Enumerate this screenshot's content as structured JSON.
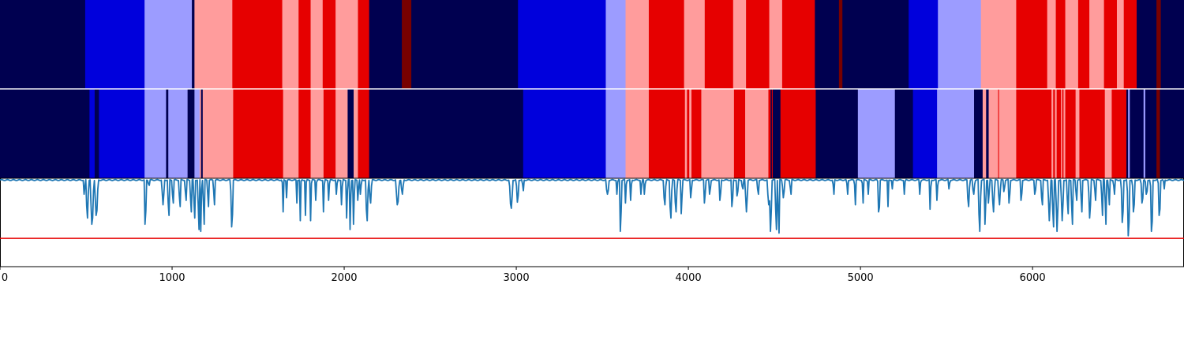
{
  "chart_data": {
    "type": "segmentation-strips-with-line",
    "xlim": [
      0,
      6880
    ],
    "x_ticks": [
      0,
      1000,
      2000,
      3000,
      4000,
      5000,
      6000
    ],
    "x_tick_labels": [
      "0",
      "1000",
      "2000",
      "3000",
      "4000",
      "5000",
      "6000"
    ],
    "state_colors": [
      "#000050",
      "#0000dc",
      "#9c9cff",
      "#ff9c9c",
      "#e60000",
      "#780000"
    ],
    "strip_top": [
      [
        0,
        0
      ],
      [
        495,
        1
      ],
      [
        840,
        2
      ],
      [
        1115,
        0
      ],
      [
        1130,
        3
      ],
      [
        1350,
        4
      ],
      [
        1640,
        3
      ],
      [
        1735,
        4
      ],
      [
        1805,
        3
      ],
      [
        1875,
        4
      ],
      [
        1950,
        3
      ],
      [
        2080,
        4
      ],
      [
        2145,
        0
      ],
      [
        2335,
        5
      ],
      [
        2390,
        0
      ],
      [
        3010,
        1
      ],
      [
        3520,
        2
      ],
      [
        3635,
        3
      ],
      [
        3770,
        4
      ],
      [
        3975,
        3
      ],
      [
        4095,
        4
      ],
      [
        4260,
        3
      ],
      [
        4335,
        4
      ],
      [
        4470,
        3
      ],
      [
        4545,
        4
      ],
      [
        4735,
        0
      ],
      [
        4875,
        5
      ],
      [
        4895,
        0
      ],
      [
        5280,
        1
      ],
      [
        5450,
        2
      ],
      [
        5700,
        3
      ],
      [
        5905,
        4
      ],
      [
        6085,
        3
      ],
      [
        6135,
        4
      ],
      [
        6190,
        3
      ],
      [
        6265,
        4
      ],
      [
        6330,
        3
      ],
      [
        6415,
        4
      ],
      [
        6490,
        3
      ],
      [
        6530,
        4
      ],
      [
        6605,
        0
      ],
      [
        6720,
        5
      ],
      [
        6745,
        0
      ]
    ],
    "strip_bottom": [
      [
        0,
        0
      ],
      [
        520,
        1
      ],
      [
        550,
        0
      ],
      [
        575,
        1
      ],
      [
        840,
        2
      ],
      [
        965,
        0
      ],
      [
        978,
        2
      ],
      [
        1090,
        0
      ],
      [
        1130,
        2
      ],
      [
        1160,
        3
      ],
      [
        1168,
        0
      ],
      [
        1178,
        3
      ],
      [
        1355,
        4
      ],
      [
        1645,
        3
      ],
      [
        1735,
        4
      ],
      [
        1805,
        3
      ],
      [
        1880,
        4
      ],
      [
        1950,
        3
      ],
      [
        2020,
        0
      ],
      [
        2055,
        3
      ],
      [
        2080,
        4
      ],
      [
        2145,
        0
      ],
      [
        3040,
        1
      ],
      [
        3520,
        2
      ],
      [
        3635,
        3
      ],
      [
        3770,
        4
      ],
      [
        3980,
        3
      ],
      [
        3992,
        4
      ],
      [
        4005,
        3
      ],
      [
        4018,
        4
      ],
      [
        4075,
        3
      ],
      [
        4265,
        4
      ],
      [
        4330,
        3
      ],
      [
        4465,
        4
      ],
      [
        4478,
        0
      ],
      [
        4485,
        4
      ],
      [
        4490,
        0
      ],
      [
        4535,
        4
      ],
      [
        4740,
        0
      ],
      [
        4985,
        2
      ],
      [
        5200,
        0
      ],
      [
        5305,
        1
      ],
      [
        5445,
        2
      ],
      [
        5660,
        0
      ],
      [
        5710,
        3
      ],
      [
        5730,
        0
      ],
      [
        5745,
        3
      ],
      [
        5800,
        4
      ],
      [
        5805,
        3
      ],
      [
        5905,
        4
      ],
      [
        6110,
        3
      ],
      [
        6120,
        4
      ],
      [
        6130,
        3
      ],
      [
        6140,
        4
      ],
      [
        6165,
        3
      ],
      [
        6172,
        4
      ],
      [
        6180,
        3
      ],
      [
        6190,
        4
      ],
      [
        6250,
        3
      ],
      [
        6272,
        4
      ],
      [
        6420,
        3
      ],
      [
        6460,
        4
      ],
      [
        6545,
        0
      ],
      [
        6555,
        2
      ],
      [
        6565,
        0
      ],
      [
        6645,
        2
      ],
      [
        6655,
        0
      ],
      [
        6720,
        5
      ],
      [
        6740,
        0
      ]
    ],
    "line_color": "#1f77b4",
    "threshold_color": "#e60000",
    "line_ylim": [
      0,
      1
    ],
    "threshold": 0.32,
    "baseline": 0.98,
    "dips": [
      [
        485,
        495,
        0.82
      ],
      [
        500,
        515,
        0.55
      ],
      [
        525,
        545,
        0.48
      ],
      [
        550,
        570,
        0.58
      ],
      [
        840,
        850,
        0.48
      ],
      [
        860,
        870,
        0.92
      ],
      [
        940,
        955,
        0.7
      ],
      [
        975,
        985,
        0.58
      ],
      [
        1000,
        1010,
        0.72
      ],
      [
        1040,
        1050,
        0.68
      ],
      [
        1075,
        1085,
        0.75
      ],
      [
        1105,
        1115,
        0.62
      ],
      [
        1125,
        1135,
        0.55
      ],
      [
        1150,
        1160,
        0.42
      ],
      [
        1165,
        1172,
        0.4
      ],
      [
        1180,
        1190,
        0.48
      ],
      [
        1205,
        1215,
        0.68
      ],
      [
        1240,
        1250,
        0.7
      ],
      [
        1340,
        1355,
        0.45
      ],
      [
        1640,
        1650,
        0.62
      ],
      [
        1660,
        1670,
        0.78
      ],
      [
        1720,
        1730,
        0.72
      ],
      [
        1740,
        1750,
        0.52
      ],
      [
        1770,
        1780,
        0.58
      ],
      [
        1800,
        1810,
        0.52
      ],
      [
        1830,
        1840,
        0.75
      ],
      [
        1875,
        1885,
        0.62
      ],
      [
        1905,
        1915,
        0.75
      ],
      [
        1950,
        1960,
        0.82
      ],
      [
        1980,
        1990,
        0.7
      ],
      [
        2010,
        2020,
        0.55
      ],
      [
        2030,
        2040,
        0.42
      ],
      [
        2050,
        2060,
        0.48
      ],
      [
        2075,
        2085,
        0.75
      ],
      [
        2090,
        2100,
        0.82
      ],
      [
        2125,
        2140,
        0.52
      ],
      [
        2145,
        2160,
        0.72
      ],
      [
        2300,
        2320,
        0.7
      ],
      [
        2330,
        2345,
        0.82
      ],
      [
        2960,
        2980,
        0.66
      ],
      [
        3000,
        3015,
        0.73
      ],
      [
        3035,
        3045,
        0.86
      ],
      [
        3520,
        3540,
        0.82
      ],
      [
        3580,
        3590,
        0.82
      ],
      [
        3600,
        3612,
        0.4
      ],
      [
        3630,
        3640,
        0.72
      ],
      [
        3660,
        3670,
        0.75
      ],
      [
        3720,
        3730,
        0.82
      ],
      [
        3740,
        3750,
        0.82
      ],
      [
        3855,
        3870,
        0.7
      ],
      [
        3890,
        3905,
        0.55
      ],
      [
        3920,
        3935,
        0.62
      ],
      [
        3955,
        3965,
        0.6
      ],
      [
        4010,
        4020,
        0.78
      ],
      [
        4090,
        4100,
        0.72
      ],
      [
        4120,
        4130,
        0.82
      ],
      [
        4180,
        4190,
        0.75
      ],
      [
        4250,
        4260,
        0.68
      ],
      [
        4280,
        4290,
        0.8
      ],
      [
        4310,
        4320,
        0.88
      ],
      [
        4330,
        4345,
        0.62
      ],
      [
        4400,
        4410,
        0.82
      ],
      [
        4460,
        4470,
        0.7
      ],
      [
        4470,
        4485,
        0.4
      ],
      [
        4505,
        4515,
        0.42
      ],
      [
        4520,
        4530,
        0.38
      ],
      [
        4545,
        4560,
        0.78
      ],
      [
        4590,
        4600,
        0.82
      ],
      [
        4840,
        4850,
        0.82
      ],
      [
        4920,
        4930,
        0.82
      ],
      [
        4965,
        4975,
        0.7
      ],
      [
        5010,
        5020,
        0.72
      ],
      [
        5040,
        5050,
        0.82
      ],
      [
        5100,
        5115,
        0.62
      ],
      [
        5155,
        5165,
        0.68
      ],
      [
        5180,
        5190,
        0.88
      ],
      [
        5250,
        5260,
        0.82
      ],
      [
        5340,
        5350,
        0.82
      ],
      [
        5400,
        5410,
        0.65
      ],
      [
        5440,
        5450,
        0.75
      ],
      [
        5510,
        5520,
        0.88
      ],
      [
        5620,
        5635,
        0.68
      ],
      [
        5650,
        5665,
        0.82
      ],
      [
        5685,
        5700,
        0.4
      ],
      [
        5720,
        5730,
        0.48
      ],
      [
        5740,
        5750,
        0.72
      ],
      [
        5765,
        5780,
        0.62
      ],
      [
        5800,
        5815,
        0.7
      ],
      [
        5830,
        5840,
        0.85
      ],
      [
        5860,
        5870,
        0.72
      ],
      [
        5930,
        5940,
        0.75
      ],
      [
        6010,
        6020,
        0.82
      ],
      [
        6050,
        6060,
        0.7
      ],
      [
        6090,
        6105,
        0.52
      ],
      [
        6115,
        6125,
        0.45
      ],
      [
        6135,
        6150,
        0.4
      ],
      [
        6165,
        6180,
        0.52
      ],
      [
        6200,
        6210,
        0.6
      ],
      [
        6225,
        6235,
        0.48
      ],
      [
        6250,
        6260,
        0.75
      ],
      [
        6280,
        6290,
        0.62
      ],
      [
        6325,
        6340,
        0.55
      ],
      [
        6360,
        6370,
        0.75
      ],
      [
        6400,
        6410,
        0.58
      ],
      [
        6420,
        6430,
        0.48
      ],
      [
        6440,
        6450,
        0.7
      ],
      [
        6470,
        6480,
        0.82
      ],
      [
        6515,
        6530,
        0.5
      ],
      [
        6550,
        6565,
        0.35
      ],
      [
        6580,
        6595,
        0.62
      ],
      [
        6630,
        6645,
        0.72
      ],
      [
        6655,
        6670,
        0.82
      ],
      [
        6685,
        6700,
        0.4
      ],
      [
        6730,
        6745,
        0.58
      ],
      [
        6760,
        6770,
        0.88
      ]
    ]
  }
}
